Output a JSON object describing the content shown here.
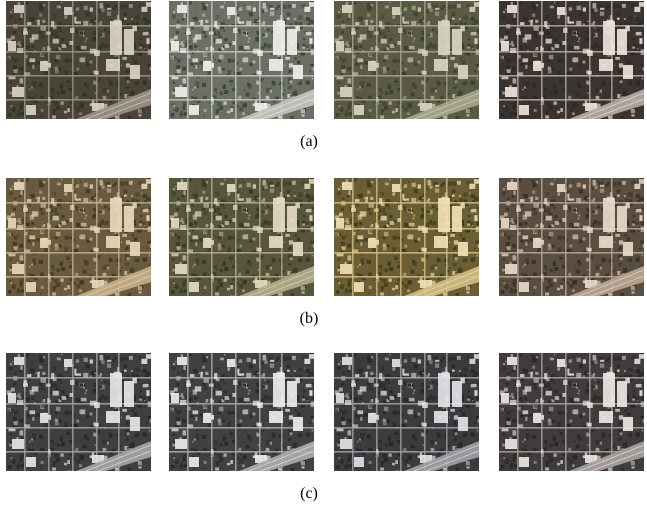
{
  "figure": {
    "rows": [
      {
        "caption": "(a)",
        "tiles": [
          {
            "tint": "#4a4438",
            "road": "#9a9486",
            "veg": "#2b3322",
            "bright": "#d9d4c8"
          },
          {
            "tint": "#6c6f66",
            "road": "#c4c6c0",
            "veg": "#3a4530",
            "bright": "#f0efea"
          },
          {
            "tint": "#5a5a45",
            "road": "#a7a78d",
            "veg": "#38412a",
            "bright": "#d8d6c1"
          },
          {
            "tint": "#3b3431",
            "road": "#b9aea6",
            "veg": "#2a2a25",
            "bright": "#efe3da"
          }
        ]
      },
      {
        "caption": "(b)",
        "tiles": [
          {
            "tint": "#6a5a40",
            "road": "#c6b08b",
            "veg": "#3b3a22",
            "bright": "#ead7b8"
          },
          {
            "tint": "#57553d",
            "road": "#b4ae8b",
            "veg": "#343a21",
            "bright": "#e3dcc0"
          },
          {
            "tint": "#6b5e36",
            "road": "#d3bf86",
            "veg": "#3b3c1c",
            "bright": "#f2e1b5"
          },
          {
            "tint": "#5a4d42",
            "road": "#bba894",
            "veg": "#35302a",
            "bright": "#e8d9c9"
          }
        ]
      },
      {
        "caption": "(c)",
        "tiles": [
          {
            "tint": "#3f3f3f",
            "road": "#a6a6a6",
            "veg": "#262926",
            "bright": "#e6e6e6"
          },
          {
            "tint": "#414141",
            "road": "#aeaeae",
            "veg": "#282b26",
            "bright": "#ececec"
          },
          {
            "tint": "#3c3b3d",
            "road": "#a3a2a6",
            "veg": "#262626",
            "bright": "#e4e2e6"
          },
          {
            "tint": "#3f3c3b",
            "road": "#aaa4a2",
            "veg": "#282725",
            "bright": "#ebe6e4"
          }
        ]
      }
    ]
  }
}
